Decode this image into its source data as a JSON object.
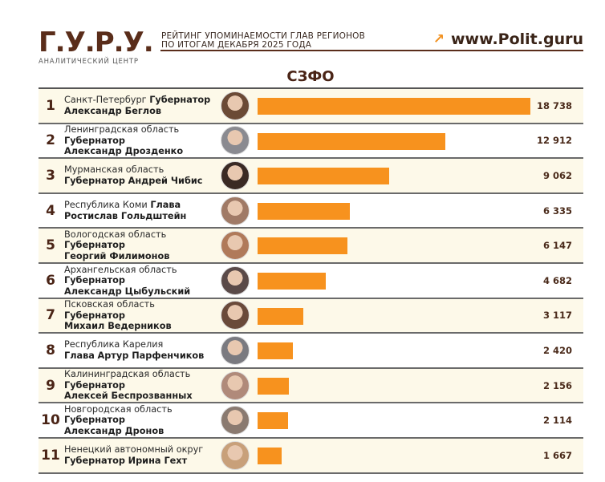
{
  "header": {
    "logo": "Г.У.Р.У.",
    "logo_subtitle": "АНАЛИТИЧЕСКИЙ ЦЕНТР",
    "title_line1": "РЕЙТИНГ УПОМИНАЕМОСТИ ГЛАВ РЕГИОНОВ",
    "title_line2": "ПО ИТОГАМ ДЕКАБРЯ 2025 ГОДА",
    "site": "www.Polit.guru",
    "site_icon": "arrow-up-right-icon",
    "region": "СЗФО"
  },
  "colors": {
    "bar": "#f7921e",
    "brand": "#5a2d1a",
    "row_alt": "#fdf9e9"
  },
  "rows": [
    {
      "rank": "1",
      "region": "Санкт-Петербург",
      "post": "Губернатор",
      "name": "Александр Беглов",
      "layout": "region-post / name",
      "value": "18 738",
      "avatar": "#6b4a36"
    },
    {
      "rank": "2",
      "region": "Ленинградская область",
      "post": "Губернатор",
      "name": "Александр Дрозденко",
      "layout": "3line",
      "value": "12 912",
      "avatar": "#8a8a90"
    },
    {
      "rank": "3",
      "region": "Мурманская область",
      "post": "Губернатор",
      "name": "Андрей Чибис",
      "layout": "region / post-name",
      "value": "9 062",
      "avatar": "#3a2a24"
    },
    {
      "rank": "4",
      "region": "Республика Коми",
      "post": "Глава",
      "name": "Ростислав Гольдштейн",
      "layout": "region-post / name",
      "value": "6 335",
      "avatar": "#a07a66"
    },
    {
      "rank": "5",
      "region": "Вологодская область",
      "post": "Губернатор",
      "name": "Георгий Филимонов",
      "layout": "3line",
      "value": "6 147",
      "avatar": "#b07a5a"
    },
    {
      "rank": "6",
      "region": "Архангельская область",
      "post": "Губернатор",
      "name": "Александр Цыбульский",
      "layout": "3line",
      "value": "4 682",
      "avatar": "#5a4a48"
    },
    {
      "rank": "7",
      "region": "Псковская область",
      "post": "Губернатор",
      "name": "Михаил Ведерников",
      "layout": "3line",
      "value": "3 117",
      "avatar": "#6a4a3a"
    },
    {
      "rank": "8",
      "region": "Республика Карелия",
      "post": "Глава",
      "name": "Артур Парфенчиков",
      "layout": "region / post-name",
      "value": "2 420",
      "avatar": "#7a7a80"
    },
    {
      "rank": "9",
      "region": "Калининградская область",
      "post": "Губернатор",
      "name": "Алексей Беспрозванных",
      "layout": "3line",
      "value": "2 156",
      "avatar": "#b08a7a"
    },
    {
      "rank": "10",
      "region": "Новгородская область",
      "post": "Губернатор",
      "name": "Александр Дронов",
      "layout": "3line",
      "value": "2 114",
      "avatar": "#8a7a70"
    },
    {
      "rank": "11",
      "region": "Ненецкий автономный округ",
      "post": "Губернатор",
      "name": "Ирина Гехт",
      "layout": "region / post-name",
      "value": "1 667",
      "avatar": "#c8a07a"
    }
  ],
  "chart_data": {
    "type": "bar",
    "orientation": "horizontal",
    "title": "Рейтинг упоминаемости глав регионов по итогам декабря 2025 года — СЗФО",
    "categories": [
      "Александр Беглов",
      "Александр Дрозденко",
      "Андрей Чибис",
      "Ростислав Гольдштейн",
      "Георгий Филимонов",
      "Александр Цыбульский",
      "Михаил Ведерников",
      "Артур Парфенчиков",
      "Алексей Беспрозванных",
      "Александр Дронов",
      "Ирина Гехт"
    ],
    "values": [
      18738,
      12912,
      9062,
      6335,
      6147,
      4682,
      3117,
      2420,
      2156,
      2114,
      1667
    ],
    "xlabel": "",
    "ylabel": "",
    "grid": false,
    "legend": null
  }
}
